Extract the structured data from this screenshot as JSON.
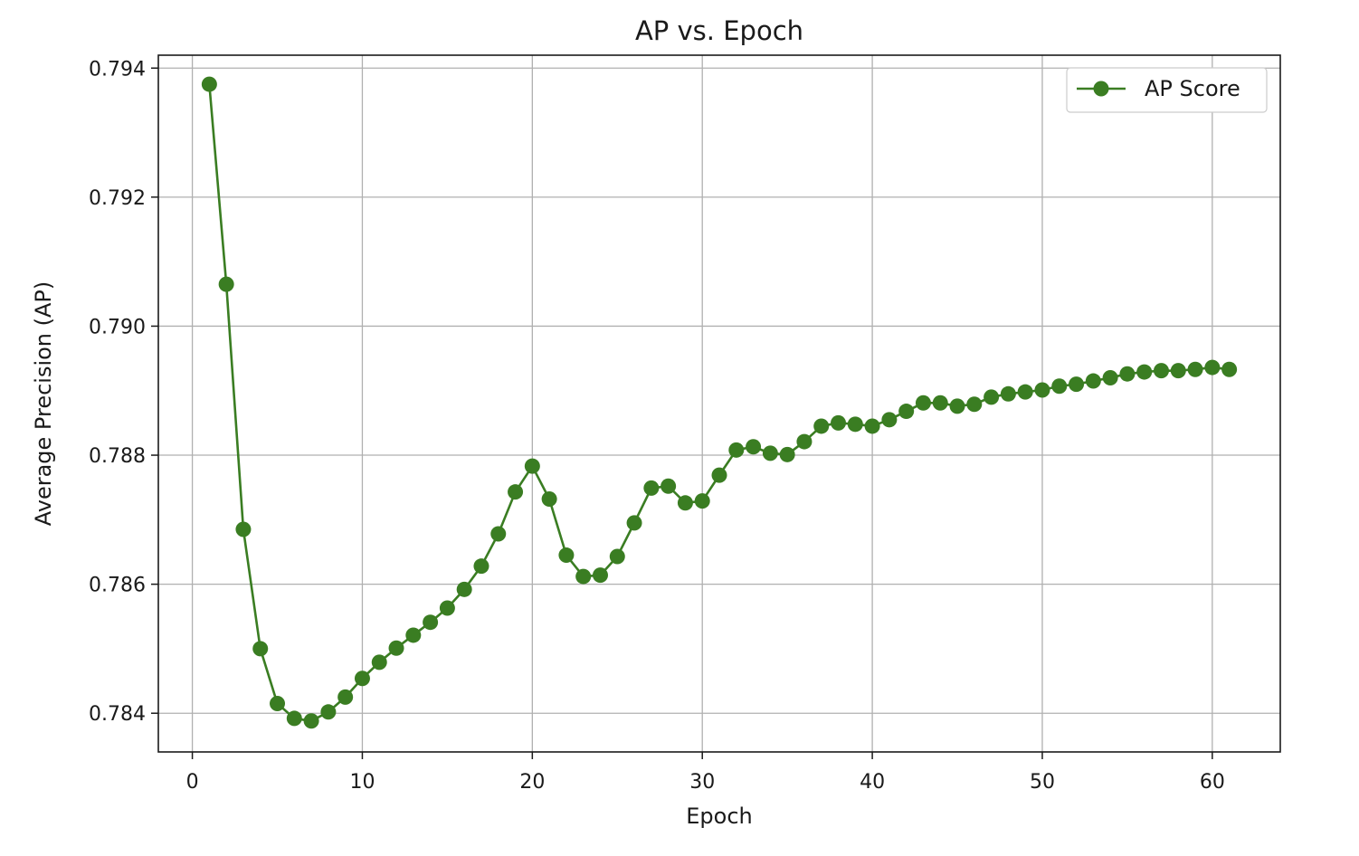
{
  "chart_data": {
    "type": "line",
    "title": "AP vs. Epoch",
    "xlabel": "Epoch",
    "ylabel": "Average Precision (AP)",
    "xlim": [
      -2,
      64
    ],
    "ylim": [
      0.7834,
      0.7942
    ],
    "xticks": [
      0,
      10,
      20,
      30,
      40,
      50,
      60
    ],
    "yticks": [
      0.784,
      0.786,
      0.788,
      0.79,
      0.792,
      0.794
    ],
    "xtick_labels": [
      "0",
      "10",
      "20",
      "30",
      "40",
      "50",
      "60"
    ],
    "ytick_labels": [
      "0.784",
      "0.786",
      "0.788",
      "0.790",
      "0.792",
      "0.794"
    ],
    "grid": true,
    "legend_position": "top-right",
    "series": [
      {
        "name": "AP Score",
        "color": "#3a7d22",
        "marker": "circle",
        "x": [
          1,
          2,
          3,
          4,
          5,
          6,
          7,
          8,
          9,
          10,
          11,
          12,
          13,
          14,
          15,
          16,
          17,
          18,
          19,
          20,
          21,
          22,
          23,
          24,
          25,
          26,
          27,
          28,
          29,
          30,
          31,
          32,
          33,
          34,
          35,
          36,
          37,
          38,
          39,
          40,
          41,
          42,
          43,
          44,
          45,
          46,
          47,
          48,
          49,
          50,
          51,
          52,
          53,
          54,
          55,
          56,
          57,
          58,
          59,
          60,
          61
        ],
        "y": [
          0.79375,
          0.79065,
          0.78685,
          0.785,
          0.78415,
          0.78392,
          0.78388,
          0.78402,
          0.78425,
          0.78454,
          0.78479,
          0.78501,
          0.78521,
          0.78541,
          0.78563,
          0.78592,
          0.78628,
          0.78678,
          0.78743,
          0.78783,
          0.78732,
          0.78645,
          0.78612,
          0.78614,
          0.78643,
          0.78695,
          0.78749,
          0.78752,
          0.78726,
          0.78729,
          0.78769,
          0.78808,
          0.78813,
          0.78803,
          0.78801,
          0.78821,
          0.78845,
          0.7885,
          0.78848,
          0.78845,
          0.78855,
          0.78868,
          0.78881,
          0.78881,
          0.78876,
          0.78879,
          0.7889,
          0.78895,
          0.78898,
          0.78901,
          0.78907,
          0.7891,
          0.78915,
          0.7892,
          0.78926,
          0.78929,
          0.78931,
          0.78931,
          0.78933,
          0.78936,
          0.78933
        ]
      }
    ]
  }
}
